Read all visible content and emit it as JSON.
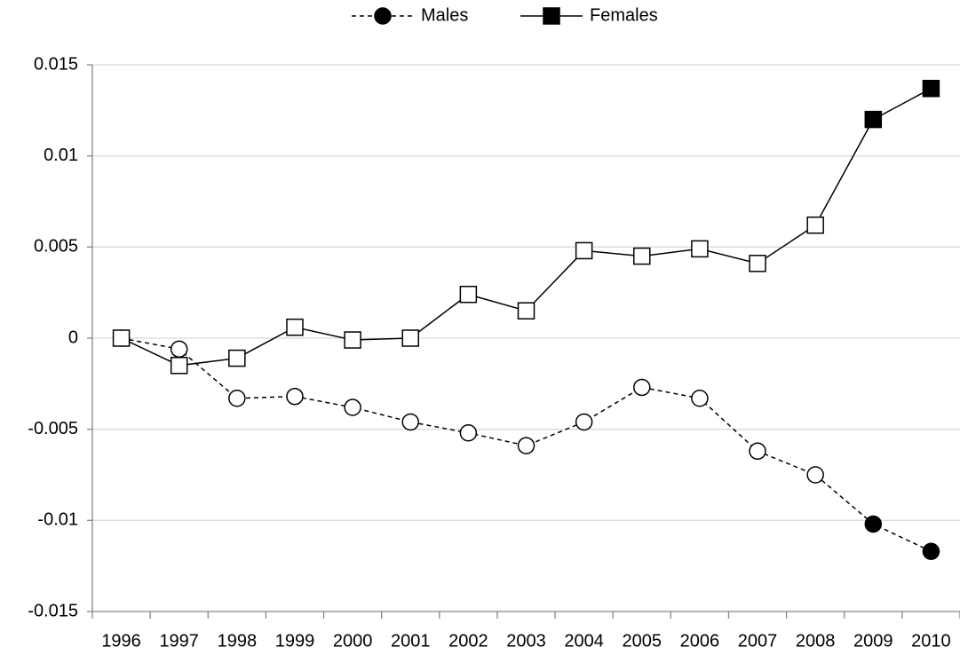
{
  "chart_data": {
    "type": "line",
    "categories": [
      "1996",
      "1997",
      "1998",
      "1999",
      "2000",
      "2001",
      "2002",
      "2003",
      "2004",
      "2005",
      "2006",
      "2007",
      "2008",
      "2009",
      "2010"
    ],
    "series": [
      {
        "name": "Males",
        "color": "#000000",
        "dash": true,
        "marker": "circle",
        "values": [
          0,
          -0.0006,
          -0.0033,
          -0.0032,
          -0.0038,
          -0.0046,
          -0.0052,
          -0.0059,
          -0.0046,
          -0.0027,
          -0.0033,
          -0.0062,
          -0.0075,
          -0.0102,
          -0.0117
        ],
        "filled": [
          false,
          false,
          false,
          false,
          false,
          false,
          false,
          false,
          false,
          false,
          false,
          false,
          false,
          true,
          true
        ]
      },
      {
        "name": "Females",
        "color": "#000000",
        "dash": false,
        "marker": "square",
        "values": [
          0,
          -0.0015,
          -0.0011,
          0.0006,
          -0.0001,
          0,
          0.0024,
          0.0015,
          0.0048,
          0.0045,
          0.0049,
          0.0041,
          0.0062,
          0.012,
          0.0137
        ],
        "filled": [
          false,
          false,
          false,
          false,
          false,
          false,
          false,
          false,
          false,
          false,
          false,
          false,
          false,
          true,
          true
        ]
      }
    ],
    "ylim": [
      -0.015,
      0.015
    ],
    "yticks": [
      -0.015,
      -0.01,
      -0.005,
      0,
      0.005,
      0.01,
      0.015
    ],
    "grid": true,
    "legend": "top"
  }
}
